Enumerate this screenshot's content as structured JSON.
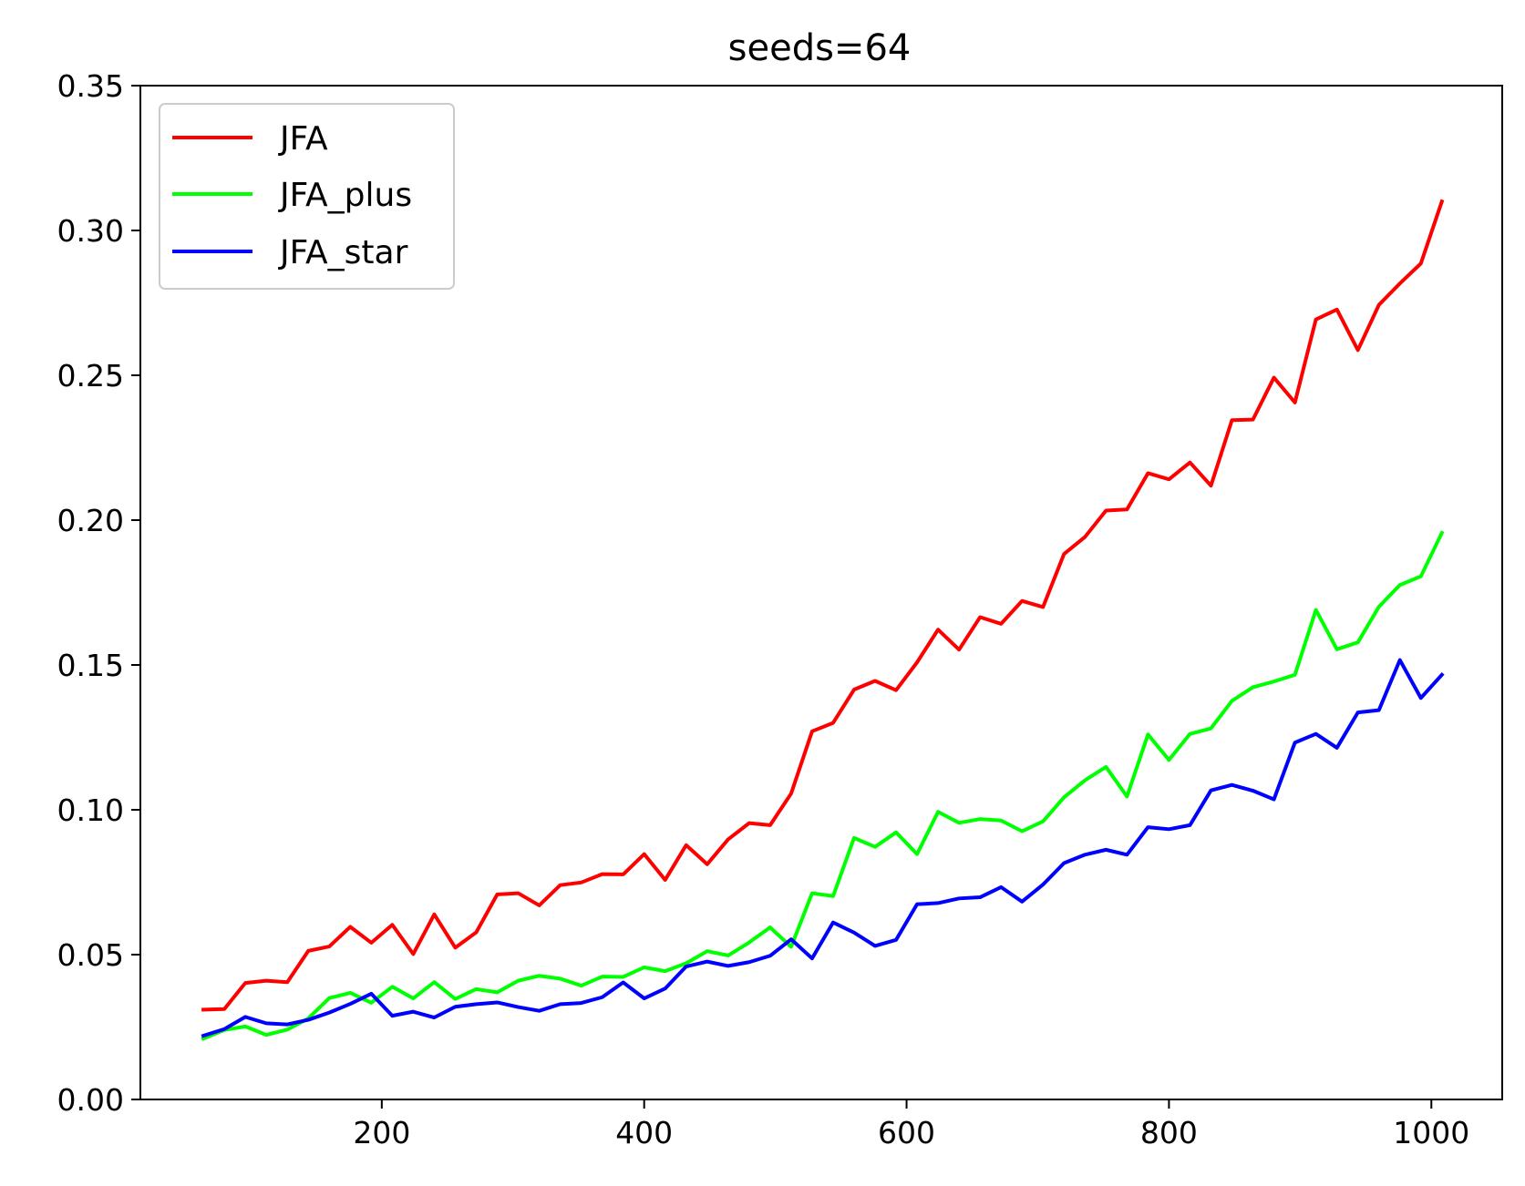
{
  "chart_data": {
    "type": "line",
    "title": "seeds=64",
    "xlabel": "",
    "ylabel": "",
    "xlim": [
      16,
      1054
    ],
    "ylim": [
      0,
      0.35
    ],
    "x_ticks": [
      200,
      400,
      600,
      800,
      1000
    ],
    "x_tick_labels": [
      "200",
      "400",
      "600",
      "800",
      "1000"
    ],
    "y_ticks": [
      0,
      0.05,
      0.1,
      0.15,
      0.2,
      0.25,
      0.3,
      0.35
    ],
    "y_tick_labels": [
      "0.00",
      "0.05",
      "0.10",
      "0.15",
      "0.20",
      "0.25",
      "0.30",
      "0.35"
    ],
    "grid": false,
    "legend_position": "top-left",
    "x": [
      64,
      80,
      96,
      112,
      128,
      144,
      160,
      176,
      192,
      208,
      224,
      240,
      256,
      272,
      288,
      304,
      320,
      336,
      352,
      368,
      384,
      400,
      416,
      432,
      448,
      464,
      480,
      496,
      512,
      528,
      544,
      560,
      576,
      592,
      608,
      624,
      640,
      656,
      672,
      688,
      704,
      720,
      736,
      752,
      768,
      784,
      800,
      816,
      832,
      848,
      864,
      880,
      896,
      912,
      928,
      944,
      960,
      976,
      992,
      1008
    ],
    "series": [
      {
        "name": "JFA",
        "color": "#ff0000",
        "values": [
          0.031,
          0.0312,
          0.0402,
          0.041,
          0.0405,
          0.0513,
          0.0528,
          0.0596,
          0.0541,
          0.0603,
          0.0502,
          0.0639,
          0.0524,
          0.0577,
          0.0708,
          0.0712,
          0.067,
          0.074,
          0.0749,
          0.0778,
          0.0777,
          0.0847,
          0.0758,
          0.0878,
          0.0812,
          0.0898,
          0.0954,
          0.0947,
          0.1056,
          0.1271,
          0.13,
          0.1415,
          0.1445,
          0.1413,
          0.1509,
          0.1622,
          0.1553,
          0.1665,
          0.1642,
          0.1721,
          0.17,
          0.1883,
          0.1942,
          0.2033,
          0.2037,
          0.2162,
          0.2141,
          0.2199,
          0.2119,
          0.2345,
          0.2347,
          0.2492,
          0.2406,
          0.2693,
          0.2727,
          0.2587,
          0.2743,
          0.2817,
          0.2886,
          0.31
        ]
      },
      {
        "name": "JFA_plus",
        "color": "#00ff00",
        "values": [
          0.021,
          0.024,
          0.0252,
          0.0223,
          0.0241,
          0.028,
          0.035,
          0.0368,
          0.0334,
          0.0389,
          0.0349,
          0.0405,
          0.0347,
          0.0381,
          0.037,
          0.041,
          0.0427,
          0.0417,
          0.0393,
          0.0424,
          0.0423,
          0.0456,
          0.0443,
          0.047,
          0.0512,
          0.0497,
          0.0542,
          0.0594,
          0.0527,
          0.0712,
          0.0702,
          0.0903,
          0.0872,
          0.0922,
          0.0847,
          0.0993,
          0.0955,
          0.0968,
          0.0963,
          0.0926,
          0.096,
          0.1043,
          0.1102,
          0.1148,
          0.1046,
          0.126,
          0.1172,
          0.1262,
          0.1281,
          0.1376,
          0.1423,
          0.1443,
          0.1466,
          0.169,
          0.1554,
          0.1578,
          0.1701,
          0.1776,
          0.1806,
          0.1956
        ]
      },
      {
        "name": "JFA_star",
        "color": "#0000ff",
        "values": [
          0.022,
          0.0243,
          0.0285,
          0.0263,
          0.0259,
          0.0275,
          0.03,
          0.033,
          0.0365,
          0.0289,
          0.0303,
          0.0283,
          0.032,
          0.0329,
          0.0335,
          0.0319,
          0.0306,
          0.0329,
          0.0333,
          0.0353,
          0.0404,
          0.0349,
          0.0383,
          0.0459,
          0.0476,
          0.0461,
          0.0474,
          0.0496,
          0.0553,
          0.0487,
          0.0611,
          0.0576,
          0.053,
          0.0551,
          0.0674,
          0.0678,
          0.0694,
          0.0698,
          0.0733,
          0.0683,
          0.0742,
          0.0816,
          0.0845,
          0.0862,
          0.0845,
          0.094,
          0.0933,
          0.0947,
          0.1067,
          0.1086,
          0.1066,
          0.1036,
          0.1232,
          0.1262,
          0.1214,
          0.1336,
          0.1344,
          0.1517,
          0.1386,
          0.1466
        ]
      }
    ]
  }
}
